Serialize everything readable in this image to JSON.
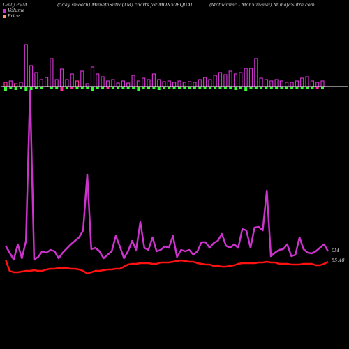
{
  "header": {
    "left": "Daily PVM",
    "middle": "(5day smooth) MunafaSutra(TM) charts for MON50EQUAL",
    "right": "(Motilalamc - Mon50equal) MunafaSutra.com"
  },
  "legend": [
    {
      "label": "Volume",
      "color": "#cc33cc"
    },
    {
      "label": "Price",
      "color": "#ff9966"
    }
  ],
  "colors": {
    "background": "#000000",
    "volume_up": "#cc33cc",
    "volume_up_other": "#ff3399",
    "volume_down": "#33ff33",
    "baseline": "#ffffff",
    "volume_line": "#cc33cc",
    "price_line": "#ff1111"
  },
  "chart_data": {
    "type": "line",
    "title": "(5day smooth) MunafaSutra(TM) charts for MON50EQUAL",
    "end_labels": {
      "volume": "0M",
      "price": "55.48"
    },
    "volume_line": [
      352,
      362,
      372,
      350,
      370,
      345,
      130,
      372,
      368,
      360,
      362,
      358,
      360,
      370,
      362,
      356,
      350,
      345,
      340,
      330,
      250,
      357,
      355,
      360,
      370,
      365,
      360,
      338,
      353,
      370,
      360,
      345,
      358,
      318,
      355,
      358,
      340,
      360,
      358,
      353,
      355,
      338,
      368,
      358,
      360,
      358,
      365,
      360,
      347,
      347,
      355,
      348,
      345,
      335,
      352,
      355,
      350,
      355,
      328,
      330,
      355,
      326,
      325,
      330,
      273,
      367,
      362,
      358,
      357,
      350,
      367,
      365,
      340,
      357,
      362,
      363,
      360,
      355,
      350,
      360
    ],
    "price_line": [
      372,
      388,
      390,
      390,
      389,
      388,
      388,
      387,
      388,
      388,
      386,
      385,
      385,
      384,
      384,
      384,
      385,
      385,
      386,
      388,
      392,
      390,
      388,
      388,
      387,
      386,
      386,
      385,
      385,
      382,
      379,
      378,
      378,
      377,
      377,
      377,
      378,
      378,
      376,
      376,
      376,
      375,
      374,
      373,
      374,
      375,
      375,
      377,
      378,
      379,
      379,
      381,
      381,
      382,
      382,
      381,
      380,
      378,
      377,
      377,
      377,
      377,
      376,
      376,
      375,
      376,
      376,
      378,
      378,
      378,
      379,
      379,
      379,
      378,
      378,
      378,
      380,
      380,
      378,
      375
    ],
    "volume_bars": [
      {
        "up": 6,
        "down": 5,
        "up_color": "pink",
        "down_color": "green"
      },
      {
        "up": 8,
        "down": 3,
        "up_color": "magenta",
        "down_color": "green"
      },
      {
        "up": 4,
        "down": 4,
        "up_color": "pink",
        "down_color": "green"
      },
      {
        "up": 6,
        "down": 3,
        "up_color": "magenta",
        "down_color": "green"
      },
      {
        "up": 60,
        "down": 5,
        "up_color": "magenta",
        "down_color": "green"
      },
      {
        "up": 30,
        "down": 4,
        "up_color": "magenta",
        "down_color": "green"
      },
      {
        "up": 20,
        "down": 2,
        "up_color": "magenta",
        "down_color": "green"
      },
      {
        "up": 10,
        "down": 2,
        "up_color": "magenta",
        "down_color": "green"
      },
      {
        "up": 13,
        "down": 0,
        "up_color": "magenta",
        "down_color": "green"
      },
      {
        "up": 40,
        "down": 3,
        "up_color": "magenta",
        "down_color": "green"
      },
      {
        "up": 10,
        "down": 3,
        "up_color": "magenta",
        "down_color": "green"
      },
      {
        "up": 25,
        "down": 5,
        "up_color": "magenta",
        "down_color": "pink"
      },
      {
        "up": 10,
        "down": 3,
        "up_color": "magenta",
        "down_color": "green"
      },
      {
        "up": 18,
        "down": 2,
        "up_color": "magenta",
        "down_color": "pink"
      },
      {
        "up": 8,
        "down": 3,
        "up_color": "pink",
        "down_color": "green"
      },
      {
        "up": 22,
        "down": 3,
        "up_color": "magenta",
        "down_color": "green"
      },
      {
        "up": 4,
        "down": 2,
        "up_color": "magenta",
        "down_color": "green"
      },
      {
        "up": 28,
        "down": 5,
        "up_color": "magenta",
        "down_color": "green"
      },
      {
        "up": 18,
        "down": 3,
        "up_color": "magenta",
        "down_color": "green"
      },
      {
        "up": 14,
        "down": 3,
        "up_color": "magenta",
        "down_color": "green"
      },
      {
        "up": 8,
        "down": 3,
        "up_color": "magenta",
        "down_color": "pink"
      },
      {
        "up": 10,
        "down": 3,
        "up_color": "magenta",
        "down_color": "green"
      },
      {
        "up": 5,
        "down": 3,
        "up_color": "magenta",
        "down_color": "green"
      },
      {
        "up": 8,
        "down": 3,
        "up_color": "magenta",
        "down_color": "green"
      },
      {
        "up": 5,
        "down": 3,
        "up_color": "magenta",
        "down_color": "green"
      },
      {
        "up": 16,
        "down": 3,
        "up_color": "magenta",
        "down_color": "green"
      },
      {
        "up": 8,
        "down": 5,
        "up_color": "magenta",
        "down_color": "green"
      },
      {
        "up": 12,
        "down": 3,
        "up_color": "magenta",
        "down_color": "green"
      },
      {
        "up": 10,
        "down": 3,
        "up_color": "magenta",
        "down_color": "green"
      },
      {
        "up": 18,
        "down": 3,
        "up_color": "magenta",
        "down_color": "green"
      },
      {
        "up": 10,
        "down": 4,
        "up_color": "magenta",
        "down_color": "green"
      },
      {
        "up": 7,
        "down": 3,
        "up_color": "magenta",
        "down_color": "green"
      },
      {
        "up": 8,
        "down": 3,
        "up_color": "magenta",
        "down_color": "green"
      },
      {
        "up": 6,
        "down": 3,
        "up_color": "magenta",
        "down_color": "green"
      },
      {
        "up": 8,
        "down": 3,
        "up_color": "magenta",
        "down_color": "green"
      },
      {
        "up": 6,
        "down": 3,
        "up_color": "magenta",
        "down_color": "green"
      },
      {
        "up": 7,
        "down": 3,
        "up_color": "magenta",
        "down_color": "green"
      },
      {
        "up": 6,
        "down": 3,
        "up_color": "magenta",
        "down_color": "green"
      },
      {
        "up": 10,
        "down": 3,
        "up_color": "magenta",
        "down_color": "green"
      },
      {
        "up": 13,
        "down": 3,
        "up_color": "magenta",
        "down_color": "green"
      },
      {
        "up": 10,
        "down": 3,
        "up_color": "magenta",
        "down_color": "green"
      },
      {
        "up": 16,
        "down": 3,
        "up_color": "magenta",
        "down_color": "green"
      },
      {
        "up": 20,
        "down": 3,
        "up_color": "magenta",
        "down_color": "green"
      },
      {
        "up": 17,
        "down": 3,
        "up_color": "magenta",
        "down_color": "green"
      },
      {
        "up": 22,
        "down": 3,
        "up_color": "magenta",
        "down_color": "green"
      },
      {
        "up": 18,
        "down": 4,
        "up_color": "magenta",
        "down_color": "green"
      },
      {
        "up": 20,
        "down": 3,
        "up_color": "magenta",
        "down_color": "green"
      },
      {
        "up": 26,
        "down": 5,
        "up_color": "magenta",
        "down_color": "green"
      },
      {
        "up": 26,
        "down": 3,
        "up_color": "magenta",
        "down_color": "green"
      },
      {
        "up": 40,
        "down": 3,
        "up_color": "magenta",
        "down_color": "green"
      },
      {
        "up": 12,
        "down": 3,
        "up_color": "magenta",
        "down_color": "green"
      },
      {
        "up": 10,
        "down": 3,
        "up_color": "magenta",
        "down_color": "green"
      },
      {
        "up": 8,
        "down": 3,
        "up_color": "magenta",
        "down_color": "green"
      },
      {
        "up": 10,
        "down": 3,
        "up_color": "magenta",
        "down_color": "green"
      },
      {
        "up": 8,
        "down": 3,
        "up_color": "magenta",
        "down_color": "green"
      },
      {
        "up": 6,
        "down": 3,
        "up_color": "magenta",
        "down_color": "green"
      },
      {
        "up": 6,
        "down": 3,
        "up_color": "magenta",
        "down_color": "green"
      },
      {
        "up": 8,
        "down": 3,
        "up_color": "magenta",
        "down_color": "green"
      },
      {
        "up": 12,
        "down": 3,
        "up_color": "magenta",
        "down_color": "green"
      },
      {
        "up": 14,
        "down": 3,
        "up_color": "magenta",
        "down_color": "green"
      },
      {
        "up": 8,
        "down": 3,
        "up_color": "magenta",
        "down_color": "green"
      },
      {
        "up": 6,
        "down": 3,
        "up_color": "magenta",
        "down_color": "pink"
      },
      {
        "up": 8,
        "down": 3,
        "up_color": "magenta",
        "down_color": "green"
      }
    ]
  }
}
